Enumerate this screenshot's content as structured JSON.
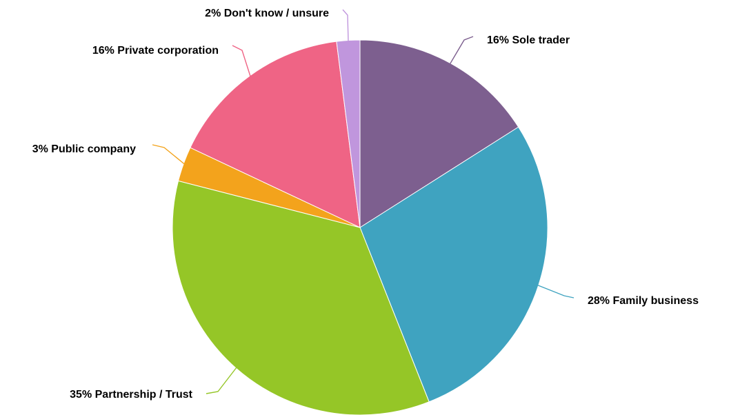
{
  "chart_data": {
    "type": "pie",
    "title": "",
    "start_angle_deg": 0,
    "direction": "clockwise",
    "slices": [
      {
        "label": "16% Sole trader",
        "value": 16,
        "color": "#7d5f8f"
      },
      {
        "label": "28% Family business",
        "value": 28,
        "color": "#3fa3c0"
      },
      {
        "label": "35% Partnership / Trust",
        "value": 35,
        "color": "#95c627"
      },
      {
        "label": "3% Public company",
        "value": 3,
        "color": "#f3a31c"
      },
      {
        "label": "16% Private corporation",
        "value": 16,
        "color": "#ef6485"
      },
      {
        "label": "2% Don't know / unsure",
        "value": 2,
        "color": "#c096dd"
      }
    ]
  }
}
